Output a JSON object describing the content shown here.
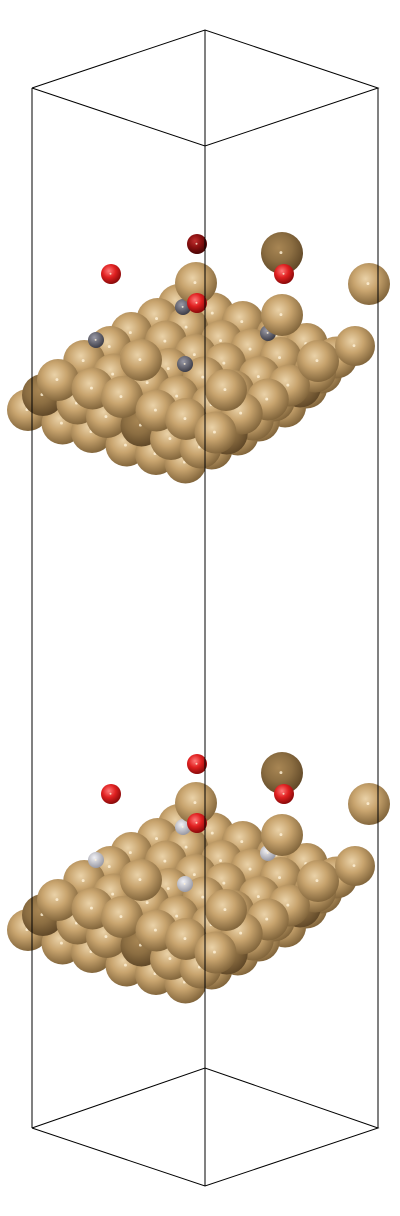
{
  "colors": {
    "background": "#ffffff",
    "cell_edge": "#000000",
    "metal_atom": "#c8a46e",
    "oxygen_atom": "#e02020",
    "dark_adsorbate_atom": "#5a5a66",
    "light_adsorbate_atom": "#c0c0c8"
  },
  "icons": {
    "scene": "molecular-structure-viewer",
    "atom": "sphere-atom"
  }
}
